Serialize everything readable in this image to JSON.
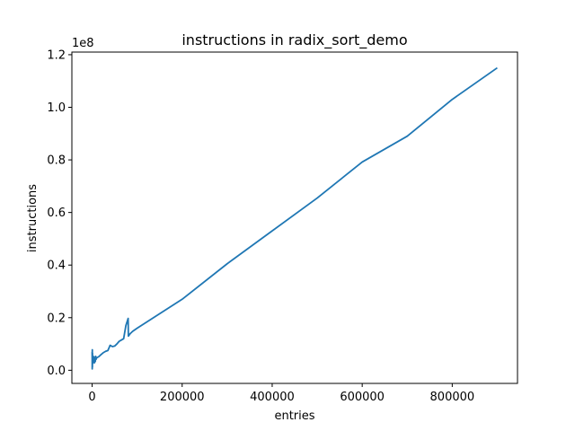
{
  "chart_data": {
    "type": "line",
    "title": "instructions in radix_sort_demo",
    "xlabel": "entries",
    "ylabel": "instructions",
    "y_offset_label": "1e8",
    "xlim": [
      -45000,
      945000
    ],
    "ylim": [
      -5000000,
      121000000
    ],
    "xticks": [
      0,
      200000,
      400000,
      600000,
      800000
    ],
    "xtick_labels": [
      "0",
      "200000",
      "400000",
      "600000",
      "800000"
    ],
    "yticks": [
      0,
      20000000,
      40000000,
      60000000,
      80000000,
      100000000,
      120000000
    ],
    "ytick_labels": [
      "0.0",
      "0.2",
      "0.4",
      "0.6",
      "0.8",
      "1.0",
      "1.2"
    ],
    "grid": false,
    "series": [
      {
        "color": "#1f77b4",
        "x": [
          0,
          200,
          400,
          600,
          800,
          1000,
          2000,
          3000,
          4000,
          5000,
          6000,
          7000,
          8000,
          9000,
          10000,
          12000,
          15000,
          20000,
          25000,
          30000,
          35000,
          40000,
          45000,
          50000,
          55000,
          60000,
          65000,
          70000,
          75000,
          80000,
          80500,
          85000,
          90000,
          100000,
          200000,
          300000,
          400000,
          500000,
          600000,
          700000,
          800000,
          900000
        ],
        "y": [
          7000000,
          500000,
          7800000,
          1200000,
          6500000,
          2500000,
          4800000,
          3000000,
          5200000,
          2800000,
          4600000,
          3300000,
          5300000,
          4200000,
          4700000,
          4900000,
          5200000,
          6000000,
          6700000,
          7200000,
          7500000,
          9500000,
          9000000,
          9200000,
          10000000,
          11000000,
          11500000,
          12000000,
          17000000,
          19700000,
          13000000,
          14000000,
          14800000,
          16000000,
          27000000,
          40500000,
          53000000,
          65500000,
          79200000,
          89000000,
          103000000,
          115000000
        ]
      }
    ]
  }
}
